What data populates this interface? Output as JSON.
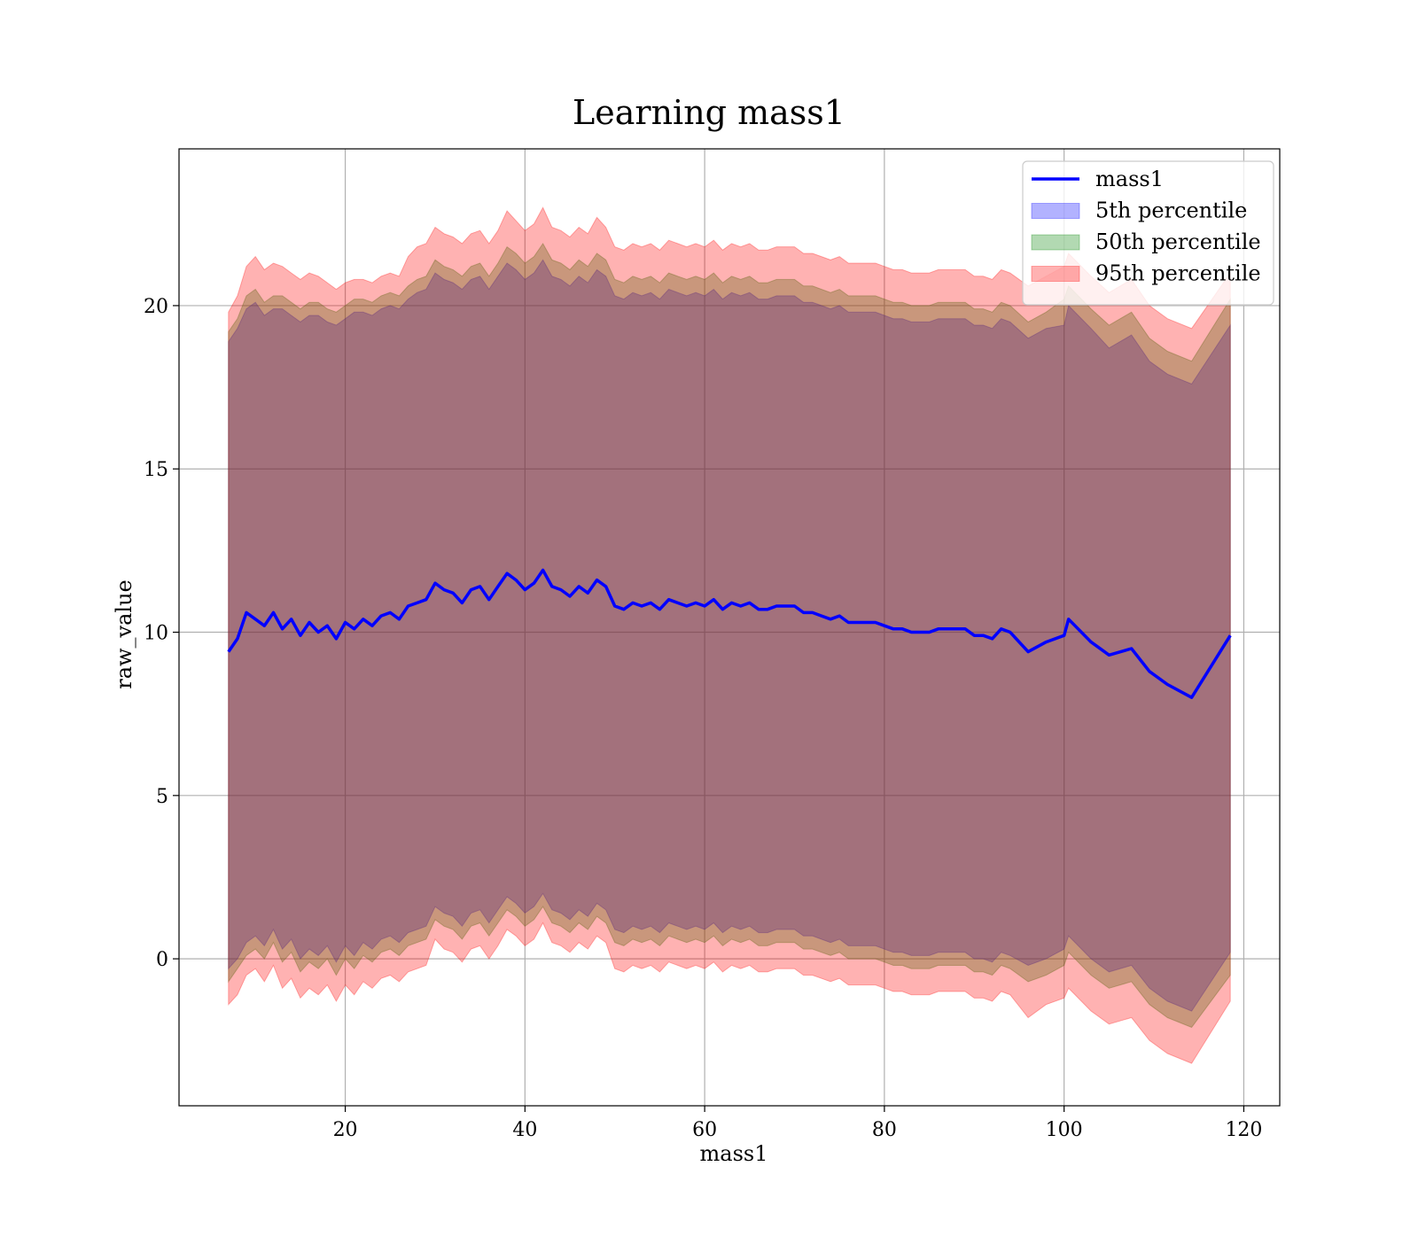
{
  "chart_data": {
    "type": "area",
    "title": "Learning mass1",
    "xlabel": "mass1",
    "ylabel": "raw_value",
    "xlim": [
      1.5,
      124
    ],
    "ylim": [
      -4.5,
      24.8
    ],
    "xticks": [
      20,
      40,
      60,
      80,
      100,
      120
    ],
    "yticks": [
      0,
      5,
      10,
      15,
      20
    ],
    "grid": true,
    "legend_position": "upper right",
    "x": [
      7,
      8,
      9,
      10,
      11,
      12,
      13,
      14,
      15,
      16,
      17,
      18,
      19,
      20,
      21,
      22,
      23,
      24,
      25,
      26,
      27,
      28,
      29,
      30,
      31,
      32,
      33,
      34,
      35,
      36,
      37,
      38,
      39,
      40,
      41,
      42,
      43,
      44,
      45,
      46,
      47,
      48,
      49,
      50,
      51,
      52,
      53,
      54,
      55,
      56,
      57,
      58,
      59,
      60,
      61,
      62,
      63,
      64,
      65,
      66,
      67,
      68,
      69,
      70,
      71,
      72,
      73,
      74,
      75,
      76,
      77,
      78,
      79,
      80,
      81,
      82,
      83,
      84,
      85,
      86,
      87,
      88,
      89,
      90,
      91,
      92,
      93,
      94,
      96,
      98,
      100,
      100.5,
      103,
      105,
      107.5,
      109.5,
      111.5,
      114.2,
      118.5
    ],
    "series": [
      {
        "name": "mass1",
        "kind": "line",
        "color": "#0000ff",
        "values": [
          9.4,
          9.8,
          10.6,
          10.4,
          10.2,
          10.6,
          10.1,
          10.4,
          9.9,
          10.3,
          10.0,
          10.2,
          9.8,
          10.3,
          10.1,
          10.4,
          10.2,
          10.5,
          10.6,
          10.4,
          10.8,
          10.9,
          11.0,
          11.5,
          11.3,
          11.2,
          10.9,
          11.3,
          11.4,
          11.0,
          11.4,
          11.8,
          11.6,
          11.3,
          11.5,
          11.9,
          11.4,
          11.3,
          11.1,
          11.4,
          11.2,
          11.6,
          11.4,
          10.8,
          10.7,
          10.9,
          10.8,
          10.9,
          10.7,
          11.0,
          10.9,
          10.8,
          10.9,
          10.8,
          11.0,
          10.7,
          10.9,
          10.8,
          10.9,
          10.7,
          10.7,
          10.8,
          10.8,
          10.8,
          10.6,
          10.6,
          10.5,
          10.4,
          10.5,
          10.3,
          10.3,
          10.3,
          10.3,
          10.2,
          10.1,
          10.1,
          10.0,
          10.0,
          10.0,
          10.1,
          10.1,
          10.1,
          10.1,
          9.9,
          9.9,
          9.8,
          10.1,
          10.0,
          9.4,
          9.7,
          9.9,
          10.4,
          9.7,
          9.3,
          9.5,
          8.8,
          8.4,
          8.0,
          9.9
        ]
      },
      {
        "name": "5th percentile",
        "kind": "band",
        "color": "#0000ff",
        "upper": [
          18.9,
          19.3,
          19.9,
          20.1,
          19.7,
          19.9,
          19.9,
          19.7,
          19.5,
          19.7,
          19.7,
          19.5,
          19.4,
          19.6,
          19.8,
          19.8,
          19.7,
          19.9,
          20.0,
          19.9,
          20.2,
          20.4,
          20.5,
          21.0,
          20.8,
          20.7,
          20.5,
          20.8,
          20.9,
          20.5,
          20.9,
          21.3,
          21.1,
          20.8,
          21.0,
          21.4,
          20.9,
          20.8,
          20.6,
          20.9,
          20.7,
          21.1,
          20.9,
          20.3,
          20.2,
          20.4,
          20.3,
          20.4,
          20.2,
          20.5,
          20.4,
          20.3,
          20.4,
          20.3,
          20.5,
          20.2,
          20.4,
          20.3,
          20.4,
          20.2,
          20.2,
          20.3,
          20.3,
          20.3,
          20.1,
          20.1,
          20.0,
          19.9,
          20.0,
          19.8,
          19.8,
          19.8,
          19.8,
          19.7,
          19.6,
          19.6,
          19.5,
          19.5,
          19.5,
          19.6,
          19.6,
          19.6,
          19.6,
          19.4,
          19.4,
          19.3,
          19.6,
          19.5,
          19.0,
          19.3,
          19.4,
          20.0,
          19.3,
          18.7,
          19.1,
          18.3,
          17.9,
          17.6,
          19.4
        ],
        "lower": [
          -0.3,
          0.0,
          0.5,
          0.7,
          0.4,
          0.9,
          0.3,
          0.6,
          0.0,
          0.3,
          0.1,
          0.4,
          -0.1,
          0.4,
          0.1,
          0.5,
          0.3,
          0.6,
          0.7,
          0.5,
          0.8,
          0.9,
          1.0,
          1.6,
          1.4,
          1.3,
          1.0,
          1.4,
          1.5,
          1.1,
          1.5,
          1.9,
          1.7,
          1.4,
          1.6,
          2.0,
          1.5,
          1.4,
          1.2,
          1.5,
          1.3,
          1.7,
          1.5,
          0.9,
          0.8,
          1.0,
          0.9,
          1.0,
          0.8,
          1.1,
          1.0,
          0.9,
          1.0,
          0.9,
          1.1,
          0.8,
          1.0,
          0.9,
          1.0,
          0.8,
          0.8,
          0.9,
          0.9,
          0.9,
          0.7,
          0.7,
          0.6,
          0.5,
          0.6,
          0.4,
          0.4,
          0.4,
          0.4,
          0.3,
          0.2,
          0.2,
          0.1,
          0.1,
          0.1,
          0.2,
          0.2,
          0.2,
          0.2,
          0.0,
          0.0,
          -0.1,
          0.2,
          0.1,
          -0.2,
          0.0,
          0.3,
          0.7,
          0.0,
          -0.4,
          -0.2,
          -0.9,
          -1.3,
          -1.6,
          0.2
        ]
      },
      {
        "name": "50th percentile",
        "kind": "band",
        "color": "#008000",
        "upper": [
          19.2,
          19.6,
          20.3,
          20.5,
          20.1,
          20.3,
          20.3,
          20.1,
          19.9,
          20.1,
          20.1,
          19.9,
          19.8,
          20.0,
          20.2,
          20.2,
          20.1,
          20.3,
          20.4,
          20.3,
          20.6,
          20.8,
          20.9,
          21.4,
          21.2,
          21.1,
          20.9,
          21.2,
          21.3,
          20.9,
          21.3,
          21.8,
          21.6,
          21.3,
          21.5,
          21.9,
          21.4,
          21.3,
          21.1,
          21.4,
          21.2,
          21.6,
          21.4,
          20.8,
          20.7,
          20.9,
          20.8,
          20.9,
          20.7,
          21.0,
          20.9,
          20.8,
          20.9,
          20.8,
          21.0,
          20.7,
          20.9,
          20.8,
          20.9,
          20.7,
          20.7,
          20.8,
          20.8,
          20.8,
          20.6,
          20.6,
          20.5,
          20.4,
          20.5,
          20.3,
          20.3,
          20.3,
          20.3,
          20.2,
          20.1,
          20.1,
          20.0,
          20.0,
          20.0,
          20.1,
          20.1,
          20.1,
          20.1,
          19.9,
          19.9,
          19.8,
          20.1,
          20.0,
          19.5,
          19.8,
          20.2,
          20.6,
          19.9,
          19.4,
          19.8,
          19.0,
          18.6,
          18.3,
          20.2
        ],
        "lower": [
          -0.7,
          -0.3,
          0.1,
          0.3,
          0.0,
          0.5,
          -0.1,
          0.2,
          -0.4,
          -0.1,
          -0.3,
          0.0,
          -0.5,
          0.0,
          -0.3,
          0.1,
          -0.1,
          0.2,
          0.3,
          0.1,
          0.4,
          0.5,
          0.6,
          1.2,
          1.0,
          0.9,
          0.6,
          1.0,
          1.1,
          0.7,
          1.1,
          1.5,
          1.3,
          1.0,
          1.2,
          1.6,
          1.1,
          1.0,
          0.8,
          1.1,
          0.9,
          1.3,
          1.1,
          0.5,
          0.4,
          0.6,
          0.5,
          0.6,
          0.4,
          0.7,
          0.6,
          0.5,
          0.6,
          0.5,
          0.7,
          0.4,
          0.6,
          0.5,
          0.6,
          0.4,
          0.4,
          0.5,
          0.5,
          0.5,
          0.3,
          0.3,
          0.2,
          0.1,
          0.2,
          0.0,
          0.0,
          0.0,
          0.0,
          -0.1,
          -0.2,
          -0.2,
          -0.3,
          -0.3,
          -0.3,
          -0.2,
          -0.2,
          -0.2,
          -0.2,
          -0.4,
          -0.4,
          -0.5,
          -0.2,
          -0.3,
          -0.7,
          -0.5,
          -0.2,
          0.2,
          -0.5,
          -0.9,
          -0.7,
          -1.4,
          -1.8,
          -2.1,
          -0.5
        ]
      },
      {
        "name": "95th percentile",
        "kind": "band",
        "color": "#ff0000",
        "upper": [
          19.8,
          20.3,
          21.2,
          21.5,
          21.1,
          21.3,
          21.2,
          21.0,
          20.8,
          21.0,
          20.9,
          20.7,
          20.5,
          20.7,
          20.8,
          20.8,
          20.7,
          20.9,
          21.0,
          20.9,
          21.5,
          21.8,
          21.9,
          22.4,
          22.2,
          22.1,
          21.9,
          22.2,
          22.3,
          21.9,
          22.3,
          22.9,
          22.6,
          22.3,
          22.5,
          23.0,
          22.4,
          22.3,
          22.1,
          22.4,
          22.2,
          22.7,
          22.4,
          21.8,
          21.7,
          21.9,
          21.8,
          21.9,
          21.7,
          22.0,
          21.9,
          21.8,
          21.9,
          21.8,
          22.0,
          21.7,
          21.9,
          21.8,
          21.9,
          21.7,
          21.7,
          21.8,
          21.8,
          21.8,
          21.6,
          21.6,
          21.5,
          21.4,
          21.5,
          21.3,
          21.3,
          21.3,
          21.3,
          21.2,
          21.1,
          21.1,
          21.0,
          21.0,
          21.0,
          21.1,
          21.1,
          21.1,
          21.1,
          20.9,
          20.9,
          20.8,
          21.1,
          21.0,
          20.6,
          20.9,
          21.2,
          21.6,
          20.9,
          20.4,
          20.8,
          20.0,
          19.6,
          19.3,
          21.0
        ],
        "lower": [
          -1.4,
          -1.1,
          -0.5,
          -0.3,
          -0.7,
          -0.2,
          -0.9,
          -0.6,
          -1.2,
          -0.9,
          -1.1,
          -0.8,
          -1.3,
          -0.8,
          -1.1,
          -0.7,
          -0.9,
          -0.6,
          -0.5,
          -0.7,
          -0.4,
          -0.3,
          -0.2,
          0.6,
          0.3,
          0.2,
          -0.1,
          0.3,
          0.4,
          0.0,
          0.4,
          0.9,
          0.7,
          0.4,
          0.6,
          1.1,
          0.5,
          0.4,
          0.2,
          0.5,
          0.3,
          0.7,
          0.5,
          -0.3,
          -0.4,
          -0.2,
          -0.3,
          -0.2,
          -0.4,
          -0.1,
          -0.2,
          -0.3,
          -0.2,
          -0.3,
          -0.1,
          -0.4,
          -0.2,
          -0.3,
          -0.2,
          -0.4,
          -0.4,
          -0.3,
          -0.3,
          -0.3,
          -0.5,
          -0.5,
          -0.6,
          -0.7,
          -0.6,
          -0.8,
          -0.8,
          -0.8,
          -0.8,
          -0.9,
          -1.0,
          -1.0,
          -1.1,
          -1.1,
          -1.1,
          -1.0,
          -1.0,
          -1.0,
          -1.0,
          -1.2,
          -1.2,
          -1.3,
          -1.0,
          -1.1,
          -1.8,
          -1.4,
          -1.2,
          -0.9,
          -1.6,
          -2.0,
          -1.8,
          -2.5,
          -2.9,
          -3.2,
          -1.3
        ]
      }
    ]
  }
}
